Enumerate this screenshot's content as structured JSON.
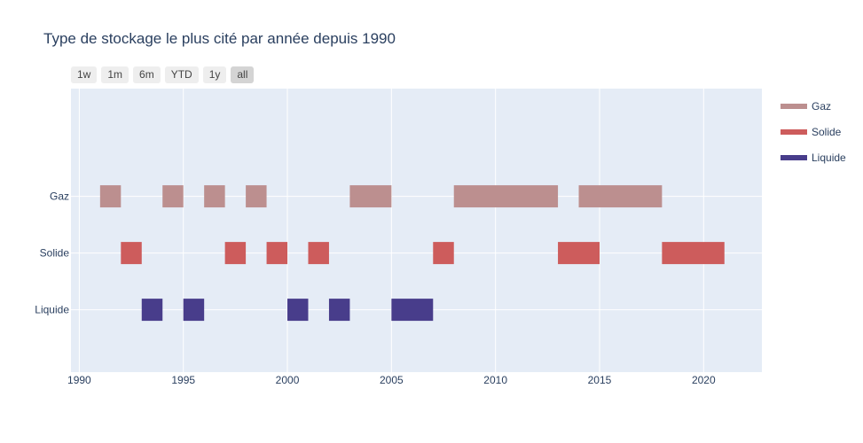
{
  "chart_data": {
    "type": "bar",
    "orientation": "horizontal-timeline",
    "title": "Type de stockage le plus cité par année depuis 1990",
    "xlabel": "",
    "ylabel": "",
    "xlim": [
      1989.6,
      2022.8
    ],
    "x_ticks": [
      1990,
      1995,
      2000,
      2005,
      2010,
      2015,
      2020
    ],
    "categories": [
      "Gaz",
      "Solide",
      "Liquide"
    ],
    "grid": true,
    "legend_position": "right",
    "series": [
      {
        "name": "Gaz",
        "color": "#bc8f8f",
        "intervals": [
          [
            1991,
            1992
          ],
          [
            1994,
            1995
          ],
          [
            1996,
            1997
          ],
          [
            1998,
            1999
          ],
          [
            2003,
            2005
          ],
          [
            2008,
            2013
          ],
          [
            2014,
            2018
          ]
        ]
      },
      {
        "name": "Solide",
        "color": "#cd5c5c",
        "intervals": [
          [
            1992,
            1993
          ],
          [
            1997,
            1998
          ],
          [
            1999,
            2000
          ],
          [
            2001,
            2002
          ],
          [
            2007,
            2008
          ],
          [
            2013,
            2015
          ],
          [
            2018,
            2021
          ]
        ]
      },
      {
        "name": "Liquide",
        "color": "#483d8b",
        "intervals": [
          [
            1993,
            1994
          ],
          [
            1995,
            1996
          ],
          [
            2000,
            2001
          ],
          [
            2002,
            2003
          ],
          [
            2005,
            2007
          ]
        ]
      }
    ]
  },
  "range_buttons": [
    {
      "label": "1w",
      "active": false
    },
    {
      "label": "1m",
      "active": false
    },
    {
      "label": "6m",
      "active": false
    },
    {
      "label": "YTD",
      "active": false
    },
    {
      "label": "1y",
      "active": false
    },
    {
      "label": "all",
      "active": true
    }
  ]
}
